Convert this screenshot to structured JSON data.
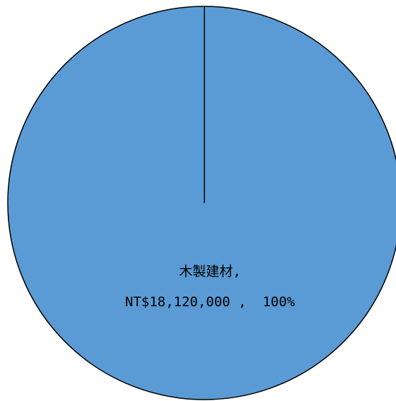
{
  "chart_data": {
    "type": "pie",
    "categories": [
      "木製建材"
    ],
    "values": [
      100
    ],
    "value_labels": [
      "100%"
    ],
    "amounts": [
      18120000
    ],
    "amount_labels": [
      "NT$18,120,000"
    ],
    "colors": [
      "#5b9bd5"
    ]
  }
}
